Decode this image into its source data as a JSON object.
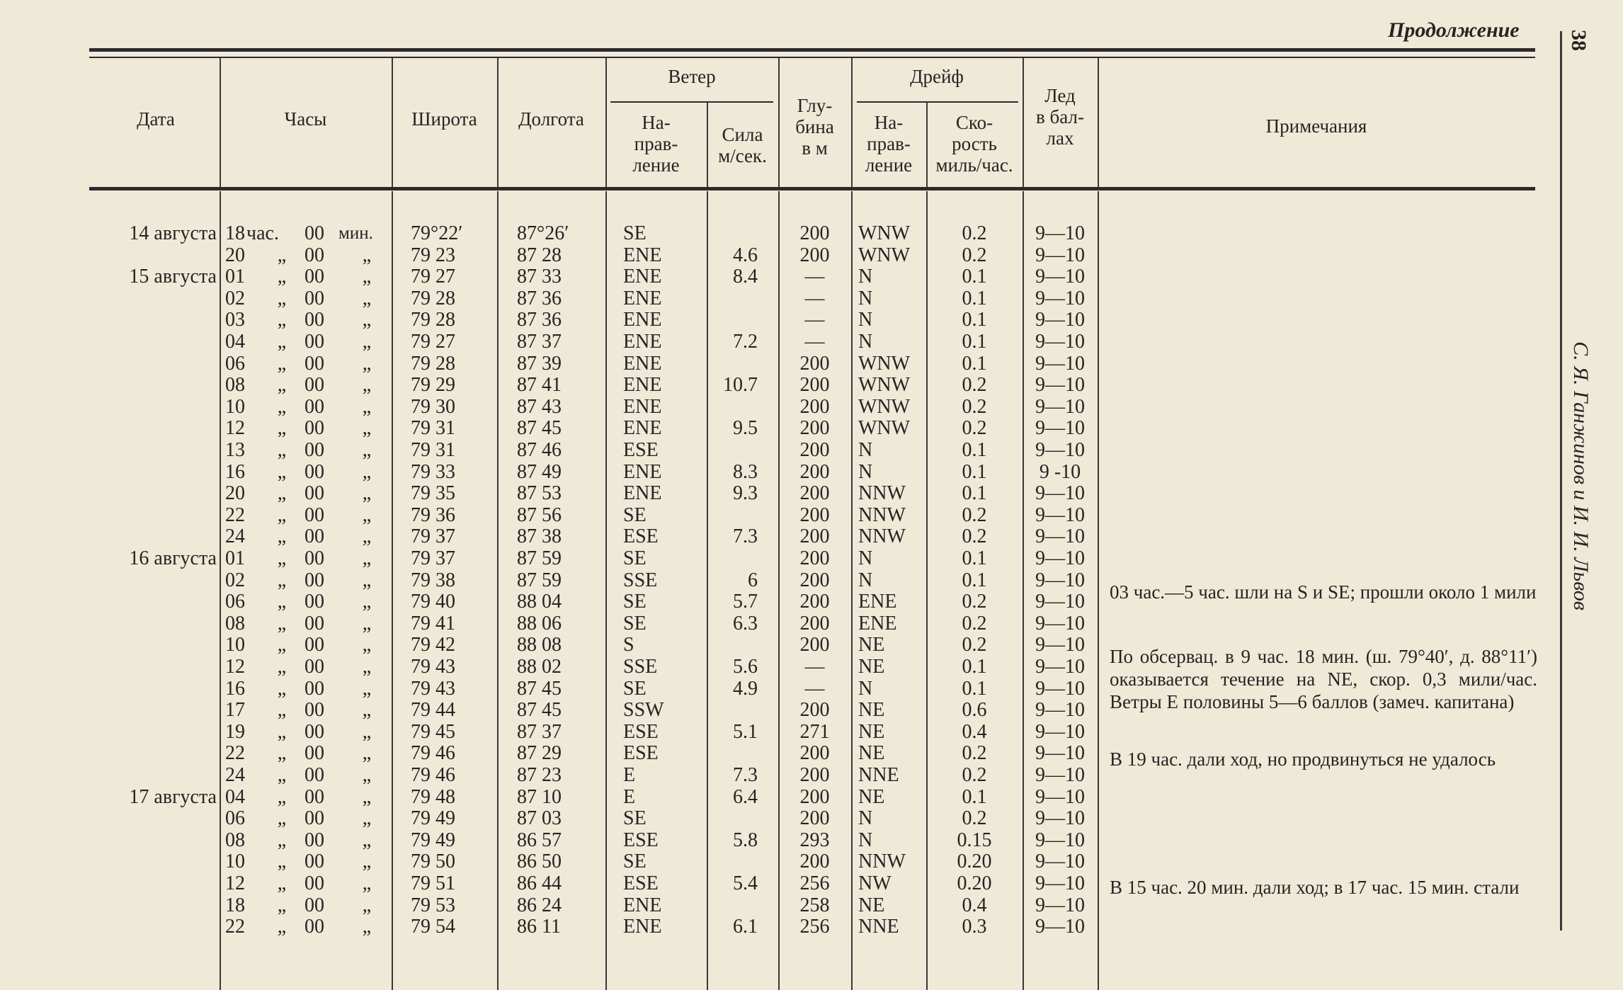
{
  "page": {
    "continuation": "Продолжение",
    "page_number": "38",
    "running_head": "С. Я. Ганжинов и И. И. Львов"
  },
  "headers": {
    "date": "Дата",
    "hours": "Часы",
    "latitude": "Широта",
    "longitude": "Долгота",
    "wind": "Ветер",
    "wind_direction": "На-\nправ-\nление",
    "wind_speed": "Сила\nм/сек.",
    "depth": "Глу-\nбина\nв м",
    "drift": "Дрейф",
    "drift_direction": "На-\nправ-\nление",
    "drift_speed": "Ско-\nрость\nмиль/час.",
    "ice": "Лед\nв бал-\nлах",
    "notes": "Примечания"
  },
  "rows": [
    {
      "date": "14 августа",
      "h": "18",
      "u1": "час.",
      "m": "00",
      "u2": "мин.",
      "lat": "79°22′",
      "lon": "87°26′",
      "wd": "SE",
      "ws": "",
      "depth": "200",
      "dd": "WNW",
      "ds": "0.2",
      "ice": "9—10"
    },
    {
      "date": "",
      "h": "20",
      "u1": "„",
      "m": "00",
      "u2": "„",
      "lat": "79 23",
      "lon": "87 28",
      "wd": "ENE",
      "ws": "4.6",
      "depth": "200",
      "dd": "WNW",
      "ds": "0.2",
      "ice": "9—10"
    },
    {
      "date": "15 августа",
      "h": "01",
      "u1": "„",
      "m": "00",
      "u2": "„",
      "lat": "79 27",
      "lon": "87 33",
      "wd": "ENE",
      "ws": "8.4",
      "depth": "—",
      "dd": "N",
      "ds": "0.1",
      "ice": "9—10"
    },
    {
      "date": "",
      "h": "02",
      "u1": "„",
      "m": "00",
      "u2": "„",
      "lat": "79 28",
      "lon": "87 36",
      "wd": "ENE",
      "ws": "",
      "depth": "—",
      "dd": "N",
      "ds": "0.1",
      "ice": "9—10"
    },
    {
      "date": "",
      "h": "03",
      "u1": "„",
      "m": "00",
      "u2": "„",
      "lat": "79 28",
      "lon": "87 36",
      "wd": "ENE",
      "ws": "",
      "depth": "—",
      "dd": "N",
      "ds": "0.1",
      "ice": "9—10"
    },
    {
      "date": "",
      "h": "04",
      "u1": "„",
      "m": "00",
      "u2": "„",
      "lat": "79 27",
      "lon": "87 37",
      "wd": "ENE",
      "ws": "7.2",
      "depth": "—",
      "dd": "N",
      "ds": "0.1",
      "ice": "9—10"
    },
    {
      "date": "",
      "h": "06",
      "u1": "„",
      "m": "00",
      "u2": "„",
      "lat": "79 28",
      "lon": "87 39",
      "wd": "ENE",
      "ws": "",
      "depth": "200",
      "dd": "WNW",
      "ds": "0.1",
      "ice": "9—10"
    },
    {
      "date": "",
      "h": "08",
      "u1": "„",
      "m": "00",
      "u2": "„",
      "lat": "79 29",
      "lon": "87 41",
      "wd": "ENE",
      "ws": "10.7",
      "depth": "200",
      "dd": "WNW",
      "ds": "0.2",
      "ice": "9—10"
    },
    {
      "date": "",
      "h": "10",
      "u1": "„",
      "m": "00",
      "u2": "„",
      "lat": "79 30",
      "lon": "87 43",
      "wd": "ENE",
      "ws": "",
      "depth": "200",
      "dd": "WNW",
      "ds": "0.2",
      "ice": "9—10"
    },
    {
      "date": "",
      "h": "12",
      "u1": "„",
      "m": "00",
      "u2": "„",
      "lat": "79 31",
      "lon": "87 45",
      "wd": "ENE",
      "ws": "9.5",
      "depth": "200",
      "dd": "WNW",
      "ds": "0.2",
      "ice": "9—10"
    },
    {
      "date": "",
      "h": "13",
      "u1": "„",
      "m": "00",
      "u2": "„",
      "lat": "79 31",
      "lon": "87 46",
      "wd": "ESE",
      "ws": "",
      "depth": "200",
      "dd": "N",
      "ds": "0.1",
      "ice": "9—10"
    },
    {
      "date": "",
      "h": "16",
      "u1": "„",
      "m": "00",
      "u2": "„",
      "lat": "79 33",
      "lon": "87 49",
      "wd": "ENE",
      "ws": "8.3",
      "depth": "200",
      "dd": "N",
      "ds": "0.1",
      "ice": "9 -10"
    },
    {
      "date": "",
      "h": "20",
      "u1": "„",
      "m": "00",
      "u2": "„",
      "lat": "79 35",
      "lon": "87 53",
      "wd": "ENE",
      "ws": "9.3",
      "depth": "200",
      "dd": "NNW",
      "ds": "0.1",
      "ice": "9—10"
    },
    {
      "date": "",
      "h": "22",
      "u1": "„",
      "m": "00",
      "u2": "„",
      "lat": "79 36",
      "lon": "87 56",
      "wd": "SE",
      "ws": "",
      "depth": "200",
      "dd": "NNW",
      "ds": "0.2",
      "ice": "9—10"
    },
    {
      "date": "",
      "h": "24",
      "u1": "„",
      "m": "00",
      "u2": "„",
      "lat": "79 37",
      "lon": "87 38",
      "wd": "ESE",
      "ws": "7.3",
      "depth": "200",
      "dd": "NNW",
      "ds": "0.2",
      "ice": "9—10"
    },
    {
      "date": "16 августа",
      "h": "01",
      "u1": "„",
      "m": "00",
      "u2": "„",
      "lat": "79 37",
      "lon": "87 59",
      "wd": "SE",
      "ws": "",
      "depth": "200",
      "dd": "N",
      "ds": "0.1",
      "ice": "9—10"
    },
    {
      "date": "",
      "h": "02",
      "u1": "„",
      "m": "00",
      "u2": "„",
      "lat": "79 38",
      "lon": "87 59",
      "wd": "SSE",
      "ws": "6",
      "depth": "200",
      "dd": "N",
      "ds": "0.1",
      "ice": "9—10"
    },
    {
      "date": "",
      "h": "06",
      "u1": "„",
      "m": "00",
      "u2": "„",
      "lat": "79 40",
      "lon": "88 04",
      "wd": "SE",
      "ws": "5.7",
      "depth": "200",
      "dd": "ENE",
      "ds": "0.2",
      "ice": "9—10"
    },
    {
      "date": "",
      "h": "08",
      "u1": "„",
      "m": "00",
      "u2": "„",
      "lat": "79 41",
      "lon": "88 06",
      "wd": "SE",
      "ws": "6.3",
      "depth": "200",
      "dd": "ENE",
      "ds": "0.2",
      "ice": "9—10"
    },
    {
      "date": "",
      "h": "10",
      "u1": "„",
      "m": "00",
      "u2": "„",
      "lat": "79 42",
      "lon": "88 08",
      "wd": "S",
      "ws": "",
      "depth": "200",
      "dd": "NE",
      "ds": "0.2",
      "ice": "9—10"
    },
    {
      "date": "",
      "h": "12",
      "u1": "„",
      "m": "00",
      "u2": "„",
      "lat": "79 43",
      "lon": "88 02",
      "wd": "SSE",
      "ws": "5.6",
      "depth": "—",
      "dd": "NE",
      "ds": "0.1",
      "ice": "9—10"
    },
    {
      "date": "",
      "h": "16",
      "u1": "„",
      "m": "00",
      "u2": "„",
      "lat": "79 43",
      "lon": "87 45",
      "wd": "SE",
      "ws": "4.9",
      "depth": "—",
      "dd": "N",
      "ds": "0.1",
      "ice": "9—10"
    },
    {
      "date": "",
      "h": "17",
      "u1": "„",
      "m": "00",
      "u2": "„",
      "lat": "79 44",
      "lon": "87 45",
      "wd": "SSW",
      "ws": "",
      "depth": "200",
      "dd": "NE",
      "ds": "0.6",
      "ice": "9—10"
    },
    {
      "date": "",
      "h": "19",
      "u1": "„",
      "m": "00",
      "u2": "„",
      "lat": "79 45",
      "lon": "87 37",
      "wd": "ESE",
      "ws": "5.1",
      "depth": "271",
      "dd": "NE",
      "ds": "0.4",
      "ice": "9—10"
    },
    {
      "date": "",
      "h": "22",
      "u1": "„",
      "m": "00",
      "u2": "„",
      "lat": "79 46",
      "lon": "87 29",
      "wd": "ESE",
      "ws": "",
      "depth": "200",
      "dd": "NE",
      "ds": "0.2",
      "ice": "9—10"
    },
    {
      "date": "",
      "h": "24",
      "u1": "„",
      "m": "00",
      "u2": "„",
      "lat": "79 46",
      "lon": "87 23",
      "wd": "E",
      "ws": "7.3",
      "depth": "200",
      "dd": "NNE",
      "ds": "0.2",
      "ice": "9—10"
    },
    {
      "date": "17 августа",
      "h": "04",
      "u1": "„",
      "m": "00",
      "u2": "„",
      "lat": "79 48",
      "lon": "87 10",
      "wd": "E",
      "ws": "6.4",
      "depth": "200",
      "dd": "NE",
      "ds": "0.1",
      "ice": "9—10"
    },
    {
      "date": "",
      "h": "06",
      "u1": "„",
      "m": "00",
      "u2": "„",
      "lat": "79 49",
      "lon": "87 03",
      "wd": "SE",
      "ws": "",
      "depth": "200",
      "dd": "N",
      "ds": "0.2",
      "ice": "9—10"
    },
    {
      "date": "",
      "h": "08",
      "u1": "„",
      "m": "00",
      "u2": "„",
      "lat": "79 49",
      "lon": "86 57",
      "wd": "ESE",
      "ws": "5.8",
      "depth": "293",
      "dd": "N",
      "ds": "0.15",
      "ice": "9—10"
    },
    {
      "date": "",
      "h": "10",
      "u1": "„",
      "m": "00",
      "u2": "„",
      "lat": "79 50",
      "lon": "86 50",
      "wd": "SE",
      "ws": "",
      "depth": "200",
      "dd": "NNW",
      "ds": "0.20",
      "ice": "9—10"
    },
    {
      "date": "",
      "h": "12",
      "u1": "„",
      "m": "00",
      "u2": "„",
      "lat": "79 51",
      "lon": "86 44",
      "wd": "ESE",
      "ws": "5.4",
      "depth": "256",
      "dd": "NW",
      "ds": "0.20",
      "ice": "9—10"
    },
    {
      "date": "",
      "h": "18",
      "u1": "„",
      "m": "00",
      "u2": "„",
      "lat": "79 53",
      "lon": "86 24",
      "wd": "ENE",
      "ws": "",
      "depth": "258",
      "dd": "NE",
      "ds": "0.4",
      "ice": "9—10"
    },
    {
      "date": "",
      "h": "22",
      "u1": "„",
      "m": "00",
      "u2": "„",
      "lat": "79 54",
      "lon": "86 11",
      "wd": "ENE",
      "ws": "6.1",
      "depth": "256",
      "dd": "NNE",
      "ds": "0.3",
      "ice": "9—10"
    }
  ],
  "notes": [
    "03 час.—5 час. шли на S и SE; прошли около 1 мили",
    "По обсервац. в 9 час. 18 мин. (ш. 79°40′, д. 88°11′) оказывается течение на NE, скор. 0,3 мили/час. Ветры E половины 5—6 баллов (замеч. капитана)",
    "В 19 час. дали ход, но продвинуться не удалось",
    "В 15 час. 20 мин. дали ход; в 17 час. 15 мин. стали"
  ]
}
